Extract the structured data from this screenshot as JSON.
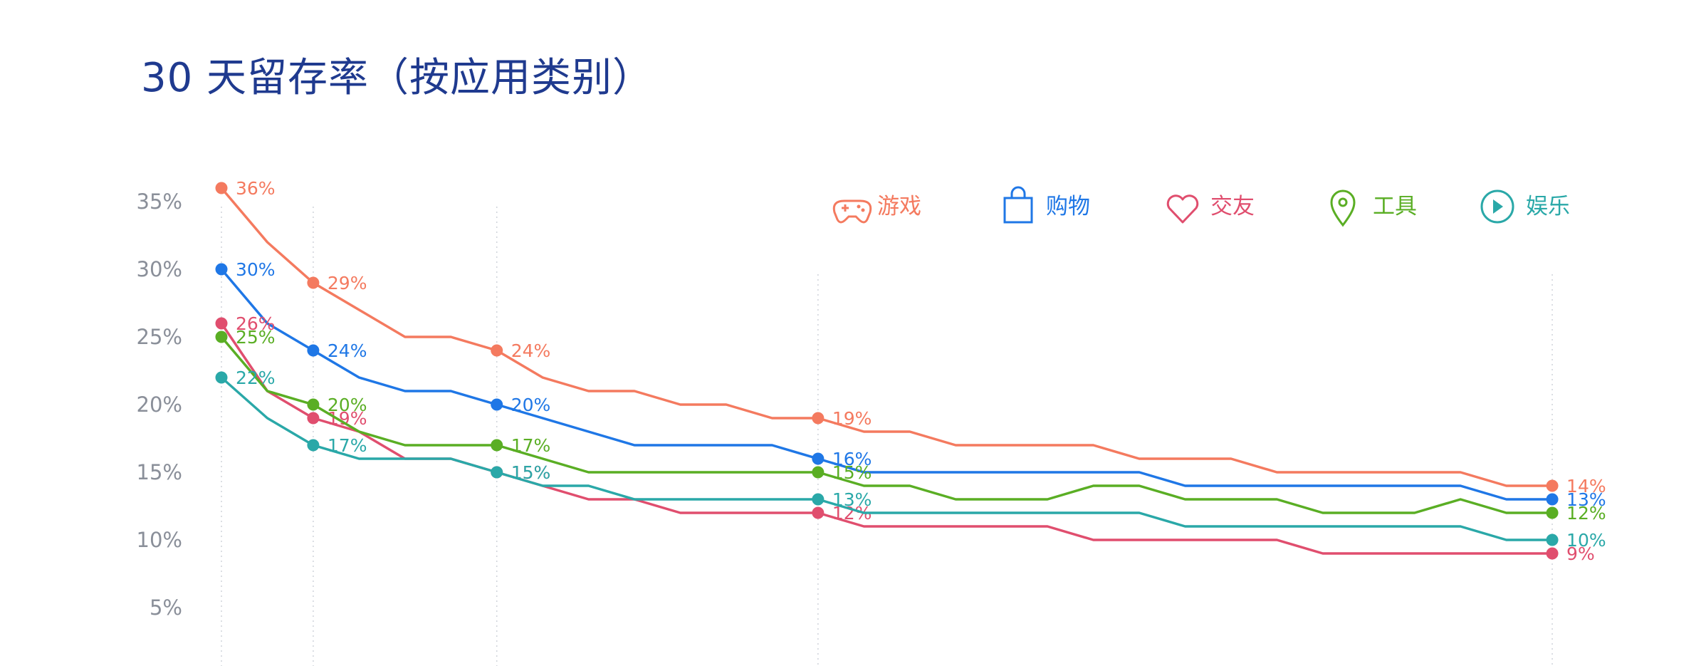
{
  "title": "30 天留存率（按应用类别）",
  "chart_data": {
    "type": "line",
    "title": "30 天留存率（按应用类别）",
    "xlabel": "",
    "ylabel": "",
    "ylim": [
      5,
      36
    ],
    "yticks": [
      "5%",
      "10%",
      "15%",
      "20%",
      "25%",
      "30%",
      "35%"
    ],
    "ytick_values": [
      5,
      10,
      15,
      20,
      25,
      30,
      35
    ],
    "x": [
      1,
      2,
      3,
      4,
      5,
      6,
      7,
      8,
      9,
      10,
      11,
      12,
      13,
      14,
      15,
      16,
      17,
      18,
      19,
      20,
      21,
      22,
      23,
      24,
      25,
      26,
      27,
      28,
      29,
      30
    ],
    "grid_x": [
      1,
      3,
      7,
      14,
      30
    ],
    "legend_position": "top-right",
    "series": [
      {
        "name": "游戏",
        "color": "#f47a5f",
        "icon": "gamepad-icon",
        "values": [
          36,
          32,
          29,
          27,
          25,
          25,
          24,
          22,
          21,
          21,
          20,
          20,
          19,
          19,
          18,
          18,
          17,
          17,
          17,
          17,
          16,
          16,
          16,
          15,
          15,
          15,
          15,
          15,
          14,
          14
        ],
        "labels": [
          {
            "x": 1,
            "text": "36%"
          },
          {
            "x": 3,
            "text": "29%"
          },
          {
            "x": 7,
            "text": "24%"
          },
          {
            "x": 14,
            "text": "19%"
          },
          {
            "x": 30,
            "text": "14%"
          }
        ]
      },
      {
        "name": "购物",
        "color": "#1f77e6",
        "icon": "shopping-bag-icon",
        "values": [
          30,
          26,
          24,
          22,
          21,
          21,
          20,
          19,
          18,
          17,
          17,
          17,
          17,
          16,
          15,
          15,
          15,
          15,
          15,
          15,
          15,
          14,
          14,
          14,
          14,
          14,
          14,
          14,
          13,
          13
        ],
        "labels": [
          {
            "x": 1,
            "text": "30%"
          },
          {
            "x": 3,
            "text": "24%"
          },
          {
            "x": 7,
            "text": "20%"
          },
          {
            "x": 14,
            "text": "16%"
          },
          {
            "x": 30,
            "text": "13%"
          }
        ]
      },
      {
        "name": "交友",
        "color": "#e04e6e",
        "icon": "heart-icon",
        "values": [
          26,
          21,
          19,
          18,
          16,
          16,
          15,
          14,
          13,
          13,
          12,
          12,
          12,
          12,
          11,
          11,
          11,
          11,
          11,
          10,
          10,
          10,
          10,
          10,
          9,
          9,
          9,
          9,
          9,
          9
        ],
        "labels": [
          {
            "x": 1,
            "text": "26%"
          },
          {
            "x": 3,
            "text": "19%"
          },
          {
            "x": 7,
            "text": "15%"
          },
          {
            "x": 14,
            "text": "12%"
          },
          {
            "x": 30,
            "text": "9%"
          }
        ]
      },
      {
        "name": "工具",
        "color": "#5aae24",
        "icon": "location-pin-icon",
        "values": [
          25,
          21,
          20,
          18,
          17,
          17,
          17,
          16,
          15,
          15,
          15,
          15,
          15,
          15,
          14,
          14,
          13,
          13,
          13,
          14,
          14,
          13,
          13,
          13,
          12,
          12,
          12,
          13,
          12,
          12
        ],
        "labels": [
          {
            "x": 1,
            "text": "25%"
          },
          {
            "x": 3,
            "text": "20%"
          },
          {
            "x": 7,
            "text": "17%"
          },
          {
            "x": 14,
            "text": "15%"
          },
          {
            "x": 30,
            "text": "12%"
          }
        ]
      },
      {
        "name": "娱乐",
        "color": "#2aa8a8",
        "icon": "play-circle-icon",
        "values": [
          22,
          19,
          17,
          16,
          16,
          16,
          15,
          14,
          14,
          13,
          13,
          13,
          13,
          13,
          12,
          12,
          12,
          12,
          12,
          12,
          12,
          11,
          11,
          11,
          11,
          11,
          11,
          11,
          10,
          10
        ],
        "labels": [
          {
            "x": 1,
            "text": "22%"
          },
          {
            "x": 3,
            "text": "17%"
          },
          {
            "x": 7,
            "text": "15%"
          },
          {
            "x": 14,
            "text": "13%"
          },
          {
            "x": 30,
            "text": "10%"
          }
        ]
      }
    ]
  }
}
